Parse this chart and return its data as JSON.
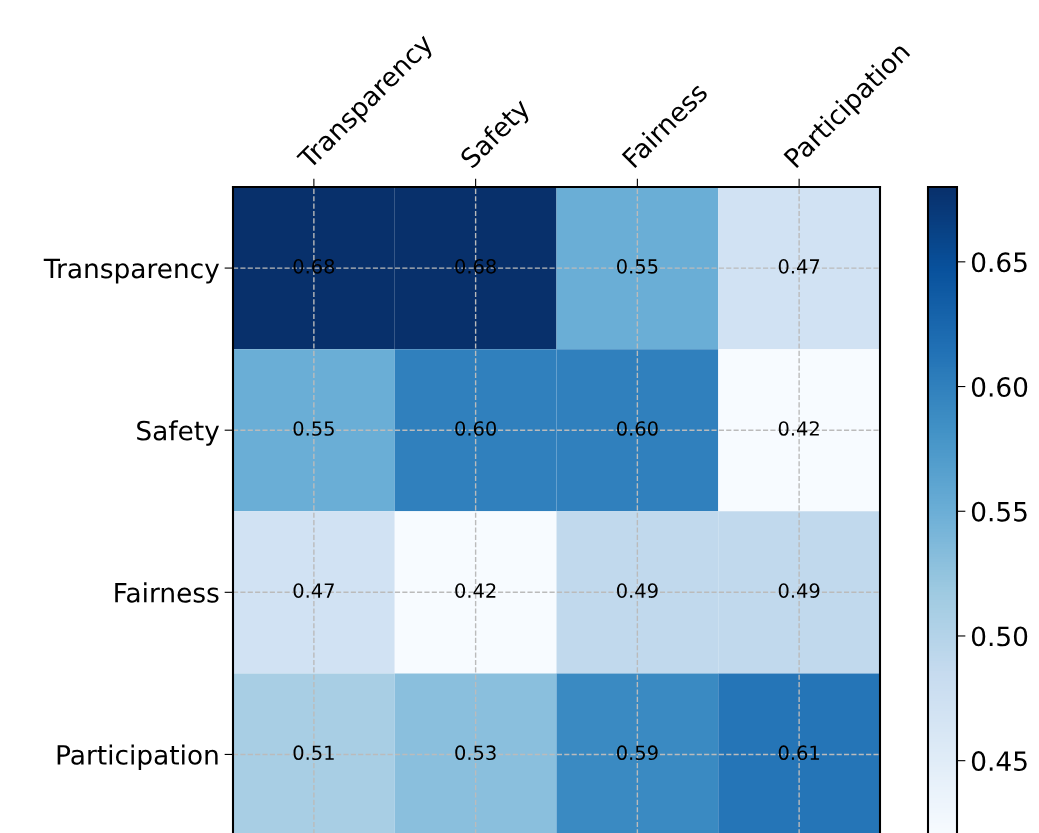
{
  "chart_data": {
    "type": "heatmap",
    "categories": [
      "Transparency",
      "Safety",
      "Fairness",
      "Participation"
    ],
    "y_categories": [
      "Transparency",
      "Safety",
      "Fairness",
      "Participation"
    ],
    "cells": [
      [
        0.68,
        0.68,
        0.55,
        0.47
      ],
      [
        0.55,
        0.6,
        0.6,
        0.42
      ],
      [
        0.47,
        0.42,
        0.49,
        0.49
      ],
      [
        0.51,
        0.53,
        0.59,
        0.61
      ]
    ],
    "cell_labels": [
      [
        "0.68",
        "0.68",
        "0.55",
        "0.47"
      ],
      [
        "0.55",
        "0.60",
        "0.60",
        "0.42"
      ],
      [
        "0.47",
        "0.42",
        "0.49",
        "0.49"
      ],
      [
        "0.51",
        "0.53",
        "0.59",
        "0.61"
      ]
    ],
    "clim": [
      0.42,
      0.68
    ],
    "cticks": [
      0.45,
      {
        "value": 0.5,
        "label": "0.50"
      },
      0.55,
      {
        "value": 0.6,
        "label": "0.60"
      },
      0.65
    ],
    "grid": true
  }
}
